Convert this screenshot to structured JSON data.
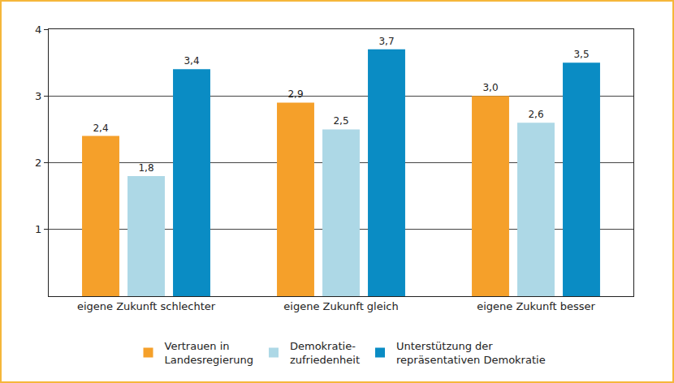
{
  "chart_data": {
    "type": "bar",
    "categories": [
      "eigene Zukunft schlechter",
      "eigene Zukunft gleich",
      "eigene Zukunft besser"
    ],
    "series": [
      {
        "name": "Vertrauen in\nLandesregierung",
        "color": "#f5a02a",
        "values": [
          2.4,
          2.9,
          3.0
        ],
        "value_labels": [
          "2,4",
          "2,9",
          "3,0"
        ]
      },
      {
        "name": "Demokratie-\nzufriedenheit",
        "color": "#add8e6",
        "values": [
          1.8,
          2.5,
          2.6
        ],
        "value_labels": [
          "1,8",
          "2,5",
          "2,6"
        ]
      },
      {
        "name": "Unterstützung der\nrepräsentativen Demokratie",
        "color": "#0a8cc4",
        "values": [
          3.4,
          3.7,
          3.5
        ],
        "value_labels": [
          "3,4",
          "3,7",
          "3,5"
        ]
      }
    ],
    "ylim": [
      0,
      4
    ],
    "yticks": [
      1,
      2,
      3,
      4
    ],
    "grid": true,
    "legend": "bottom",
    "data_labels": true
  }
}
